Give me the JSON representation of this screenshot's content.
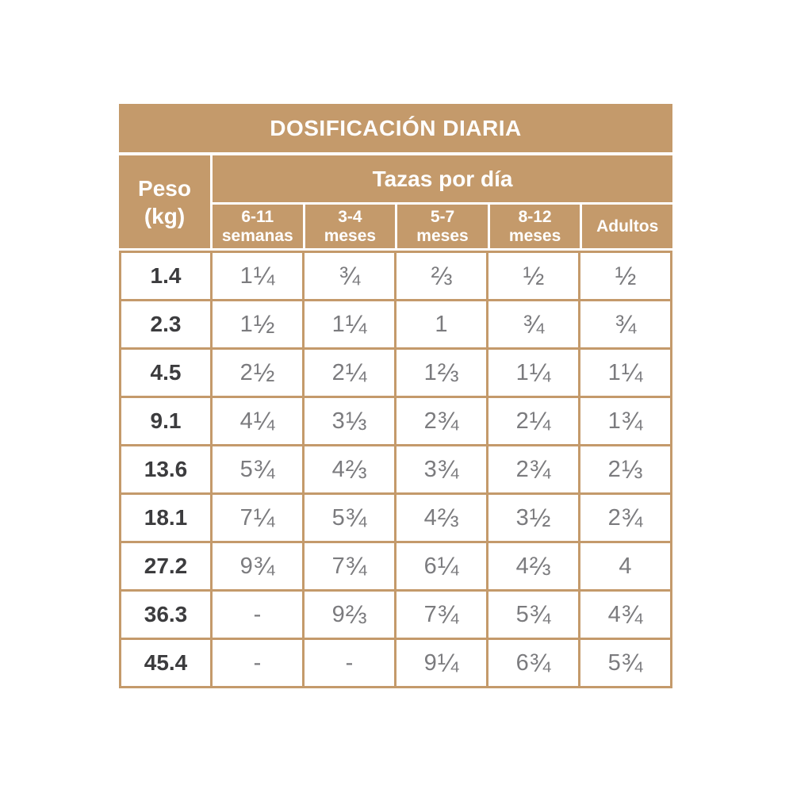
{
  "chart_data": {
    "type": "table",
    "title": "DOSIFICACIÓN DIARIA",
    "row_header": {
      "line1": "Peso",
      "line2": "(kg)"
    },
    "column_group": "Tazas por día",
    "columns": [
      {
        "line1": "6-11",
        "line2": "semanas"
      },
      {
        "line1": "3-4",
        "line2": "meses"
      },
      {
        "line1": "5-7",
        "line2": "meses"
      },
      {
        "line1": "8-12",
        "line2": "meses"
      },
      {
        "line1": "Adultos",
        "line2": ""
      }
    ],
    "rows": [
      {
        "weight": "1.4",
        "values": [
          "1¼",
          "¾",
          "⅔",
          "½",
          "½"
        ]
      },
      {
        "weight": "2.3",
        "values": [
          "1½",
          "1¼",
          "1",
          "¾",
          "¾"
        ]
      },
      {
        "weight": "4.5",
        "values": [
          "2½",
          "2¼",
          "1⅔",
          "1¼",
          "1¼"
        ]
      },
      {
        "weight": "9.1",
        "values": [
          "4¼",
          "3⅓",
          "2¾",
          "2¼",
          "1¾"
        ]
      },
      {
        "weight": "13.6",
        "values": [
          "5¾",
          "4⅔",
          "3¾",
          "2¾",
          "2⅓"
        ]
      },
      {
        "weight": "18.1",
        "values": [
          "7¼",
          "5¾",
          "4⅔",
          "3½",
          "2¾"
        ]
      },
      {
        "weight": "27.2",
        "values": [
          "9¾",
          "7¾",
          "6¼",
          "4⅔",
          "4"
        ]
      },
      {
        "weight": "36.3",
        "values": [
          "-",
          "9⅔",
          "7¾",
          "5¾",
          "4¾"
        ]
      },
      {
        "weight": "45.4",
        "values": [
          "-",
          "-",
          "9¼",
          "6¾",
          "5¾"
        ]
      }
    ]
  },
  "colors": {
    "gold": "#C49A6B",
    "header_text": "#FFFFFF",
    "value_text": "#7B7B7E",
    "weight_text": "#3C3C3E",
    "background": "#FFFFFF"
  }
}
